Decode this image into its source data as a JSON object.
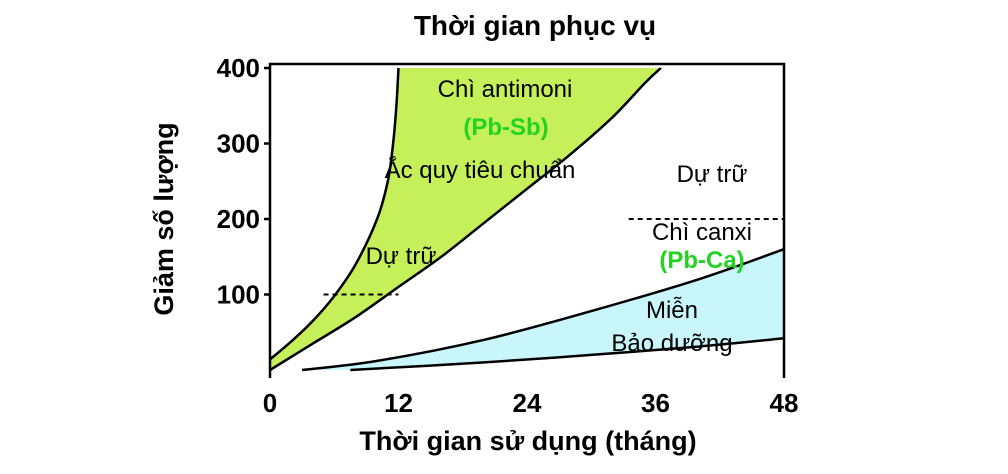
{
  "chart_data": {
    "type": "area",
    "title": "Thời gian phục vụ",
    "xlabel": "Thời gian sử dụng (tháng)",
    "ylabel": "Giảm số lượng",
    "xlim": [
      0,
      48
    ],
    "ylim": [
      0,
      400
    ],
    "x_ticks": [
      0,
      12,
      24,
      36,
      48
    ],
    "x_tick_labels": [
      "0",
      "12",
      "24",
      "36",
      "48"
    ],
    "y_ticks": [
      100,
      200,
      300,
      400
    ],
    "y_tick_labels": [
      "100",
      "200",
      "300",
      "400"
    ],
    "grid": false,
    "regions": [
      {
        "name": "Pb-Sb",
        "color": "#c6f05a",
        "upper": [
          [
            0,
            14
          ],
          [
            2,
            38
          ],
          [
            4,
            65
          ],
          [
            6,
            98
          ],
          [
            8,
            140
          ],
          [
            10,
            200
          ],
          [
            11,
            250
          ],
          [
            11.5,
            300
          ],
          [
            11.8,
            350
          ],
          [
            12,
            400
          ]
        ],
        "lower": [
          [
            0,
            0
          ],
          [
            4,
            35
          ],
          [
            8,
            70
          ],
          [
            12,
            110
          ],
          [
            16,
            150
          ],
          [
            20,
            195
          ],
          [
            24,
            240
          ],
          [
            28,
            285
          ],
          [
            32,
            335
          ],
          [
            35,
            380
          ],
          [
            36.5,
            400
          ]
        ]
      },
      {
        "name": "Pb-Ca",
        "color": "#c8f6fa",
        "upper": [
          [
            3,
            0
          ],
          [
            10,
            12
          ],
          [
            20,
            40
          ],
          [
            30,
            78
          ],
          [
            40,
            120
          ],
          [
            48,
            160
          ]
        ],
        "lower": [
          [
            7.5,
            0
          ],
          [
            20,
            10
          ],
          [
            30,
            20
          ],
          [
            40,
            31
          ],
          [
            48,
            42
          ]
        ]
      }
    ],
    "reference_lines": [
      {
        "y": 100,
        "x_start": 5,
        "x_end": 12,
        "style": "dashed"
      },
      {
        "y": 200,
        "x_start": 33.5,
        "x_end": 48,
        "style": "dashed"
      }
    ],
    "annotations": {
      "sb_name": "Chì antimoni",
      "sb_formula": "(Pb-Sb)",
      "standard": "Ắc quy tiêu chuẩn",
      "reserve_left": "Dự trữ",
      "reserve_right": "Dự trữ",
      "ca_name": "Chì canxi",
      "ca_formula": "(Pb-Ca)",
      "mf_line1": "Miễn",
      "mf_line2": "Bảo dưỡng"
    },
    "colors": {
      "sb_fill": "#c6f05a",
      "ca_fill": "#c8f6fa",
      "formula_text": "#22d422",
      "line": "#000000"
    }
  }
}
